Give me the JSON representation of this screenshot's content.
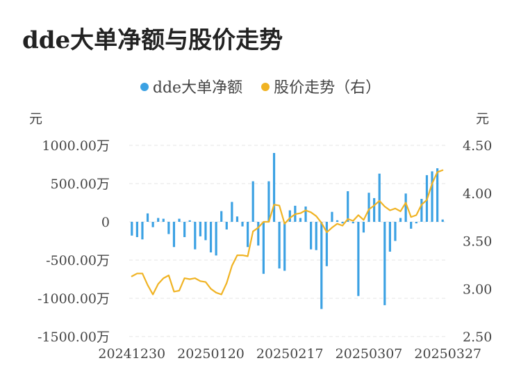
{
  "chart_data": {
    "type": "bar+line",
    "title": "dde大单净额与股价走势",
    "y_left_unit": "元",
    "y_right_unit": "元",
    "y_left_ticks": [
      "1000.00万",
      "500.00万",
      "0",
      "-500.00万",
      "-1000.00万",
      "-1500.00万"
    ],
    "y_left_tick_values": [
      1000,
      500,
      0,
      -500,
      -1000,
      -1500
    ],
    "y_left_range": [
      -1500,
      1000
    ],
    "y_right_ticks": [
      "4.50",
      "4.00",
      "3.50",
      "3.00",
      "2.50"
    ],
    "y_right_tick_values": [
      4.5,
      4.0,
      3.5,
      3.0,
      2.5
    ],
    "y_right_range": [
      2.5,
      4.5
    ],
    "x_tick_labels": [
      "20241230",
      "20250120",
      "20250217",
      "20250307",
      "20250327"
    ],
    "x_tick_indices": [
      0,
      15,
      30,
      45,
      60
    ],
    "series": [
      {
        "name": "dde大单净额",
        "type": "bar",
        "axis": "left",
        "color": "#3ba1e3",
        "values": [
          -180,
          -200,
          -230,
          110,
          -70,
          50,
          40,
          -160,
          -330,
          40,
          -200,
          20,
          -360,
          -190,
          -240,
          -400,
          -440,
          140,
          -100,
          260,
          70,
          -60,
          -330,
          530,
          -310,
          -680,
          530,
          900,
          -610,
          -640,
          150,
          210,
          50,
          200,
          -360,
          -370,
          -1140,
          -580,
          130,
          20,
          -20,
          400,
          -20,
          -970,
          -140,
          380,
          310,
          630,
          -1090,
          -390,
          -250,
          50,
          370,
          -90,
          -20,
          300,
          610,
          660,
          700,
          30
        ]
      },
      {
        "name": "股价走势（右）",
        "type": "line",
        "axis": "right",
        "color": "#f0b323",
        "values": [
          3.13,
          3.16,
          3.16,
          3.04,
          2.94,
          3.05,
          3.11,
          3.14,
          2.97,
          2.98,
          3.11,
          3.1,
          3.11,
          3.08,
          3.07,
          3.0,
          2.96,
          2.94,
          3.06,
          3.24,
          3.35,
          3.35,
          3.34,
          3.6,
          3.64,
          3.7,
          3.7,
          3.88,
          3.87,
          3.68,
          3.74,
          3.78,
          3.79,
          3.82,
          3.8,
          3.76,
          3.69,
          3.59,
          3.64,
          3.68,
          3.66,
          3.73,
          3.71,
          3.77,
          3.72,
          3.83,
          3.87,
          3.92,
          3.86,
          3.82,
          3.84,
          3.81,
          3.9,
          3.75,
          3.77,
          3.88,
          3.93,
          4.1,
          4.22,
          4.24
        ]
      }
    ],
    "grid": true,
    "legend_position": "top-center"
  }
}
